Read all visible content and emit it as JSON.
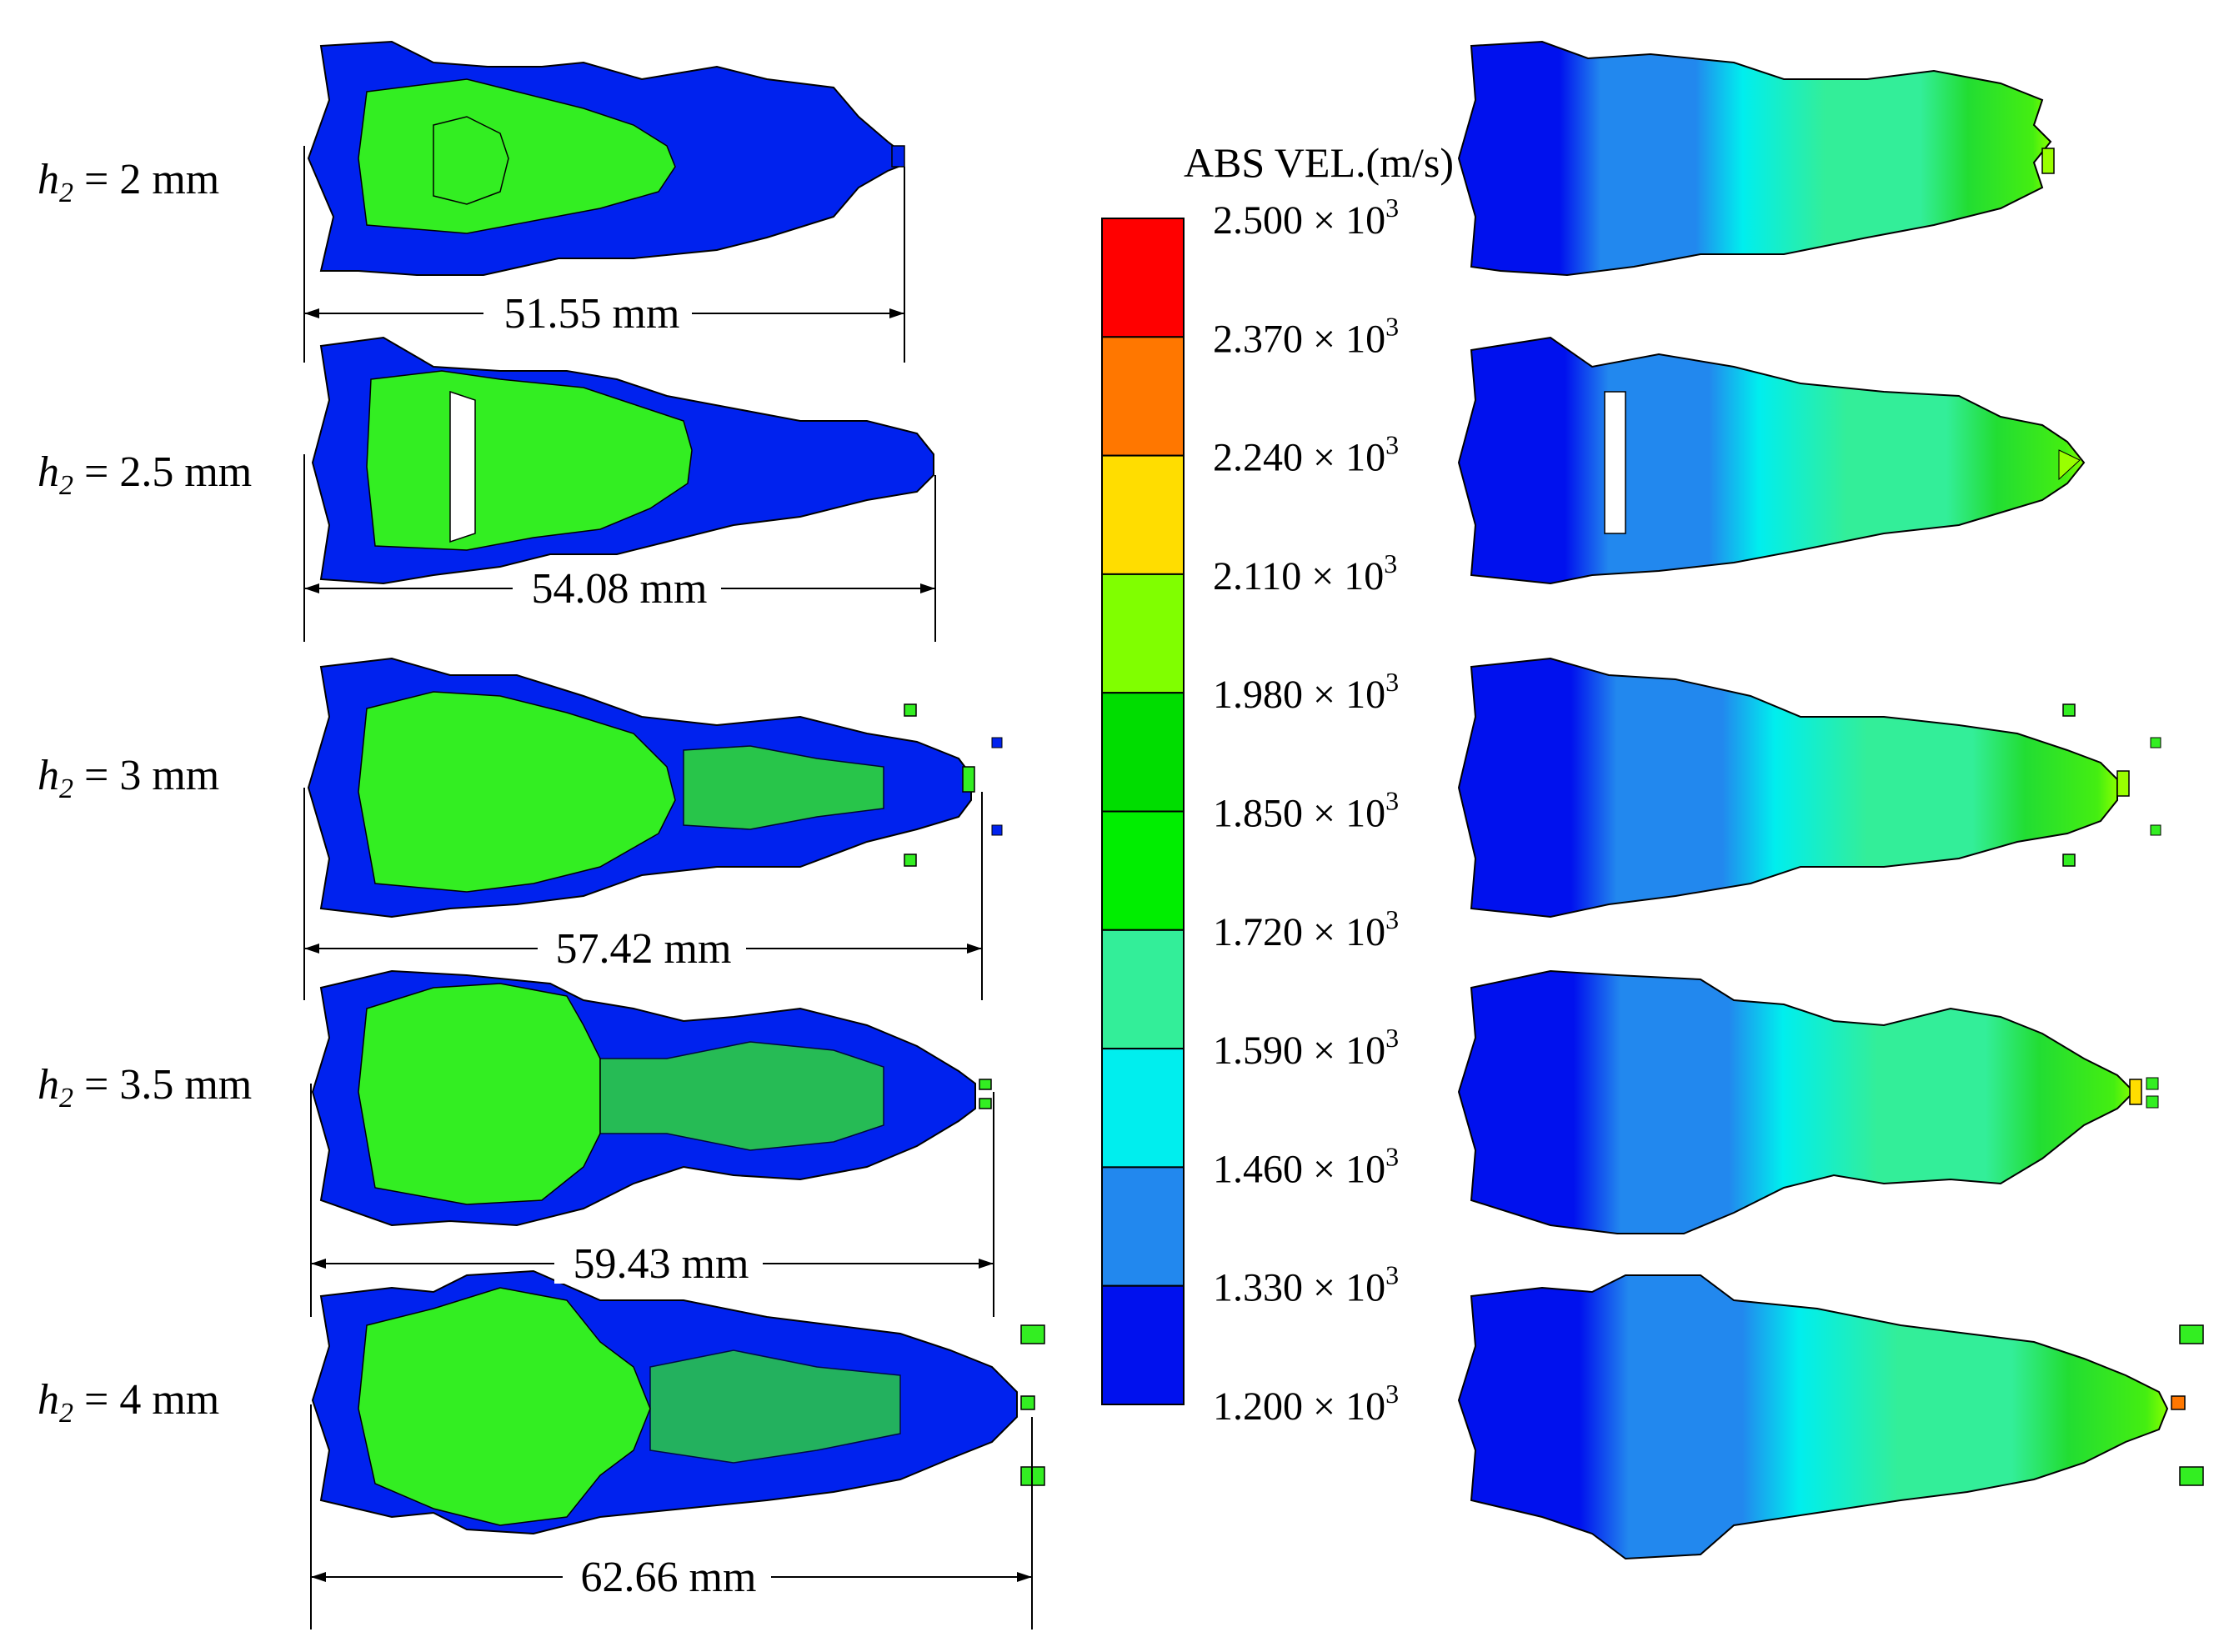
{
  "legend": {
    "title": "ABS VEL.(m/s)",
    "exponent": "3",
    "ticks": [
      "2.500",
      "2.370",
      "2.240",
      "2.110",
      "1.980",
      "1.850",
      "1.720",
      "1.590",
      "1.460",
      "1.330",
      "1.200"
    ],
    "times_symbol": "×",
    "base": "10",
    "bands_top_to_bottom": [
      "#ff0000",
      "#ff7700",
      "#ffdd00",
      "#80ff00",
      "#00dd00",
      "#00ee00",
      "#33ee99",
      "#00eeee",
      "#2288ee",
      "#0011ee"
    ]
  },
  "cases": [
    {
      "h_var": "h",
      "h_sub": "2",
      "h_value": "= 2 mm",
      "length": "51.55 mm"
    },
    {
      "h_var": "h",
      "h_sub": "2",
      "h_value": "= 2.5 mm",
      "length": "54.08 mm"
    },
    {
      "h_var": "h",
      "h_sub": "2",
      "h_value": "= 3 mm",
      "length": "57.42 mm"
    },
    {
      "h_var": "h",
      "h_sub": "2",
      "h_value": "= 3.5 mm",
      "length": "59.43 mm"
    },
    {
      "h_var": "h",
      "h_sub": "2",
      "h_value": "= 4 mm",
      "length": "62.66 mm"
    }
  ],
  "colors": {
    "jet_blue": "#0022ee",
    "jet_green": "#33ee22",
    "outline": "#000000"
  }
}
